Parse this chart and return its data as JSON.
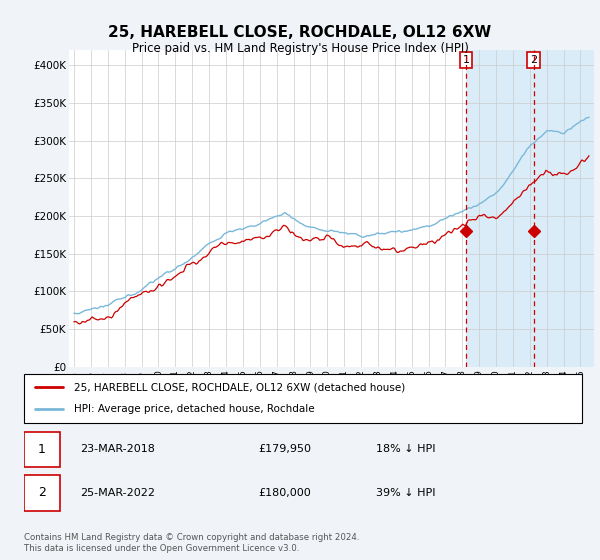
{
  "title": "25, HAREBELL CLOSE, ROCHDALE, OL12 6XW",
  "subtitle": "Price paid vs. HM Land Registry's House Price Index (HPI)",
  "hpi_label": "HPI: Average price, detached house, Rochdale",
  "property_label": "25, HAREBELL CLOSE, ROCHDALE, OL12 6XW (detached house)",
  "footer": "Contains HM Land Registry data © Crown copyright and database right 2024.\nThis data is licensed under the Open Government Licence v3.0.",
  "ylim": [
    0,
    420000
  ],
  "yticks": [
    0,
    50000,
    100000,
    150000,
    200000,
    250000,
    300000,
    350000,
    400000
  ],
  "ytick_labels": [
    "£0",
    "£50K",
    "£100K",
    "£150K",
    "£200K",
    "£250K",
    "£300K",
    "£350K",
    "£400K"
  ],
  "sale1_date": 2018.22,
  "sale1_price": 179950,
  "sale2_date": 2022.22,
  "sale2_price": 180000,
  "hpi_color": "#7ab8d9",
  "property_color": "#cc0000",
  "vline_color": "#cc0000",
  "shade_color": "#d6eaf8",
  "background_color": "#f0f4f8",
  "plot_bg_color": "#ffffff",
  "grid_color": "#cccccc",
  "xlim_left": 1994.7,
  "xlim_right": 2025.8
}
